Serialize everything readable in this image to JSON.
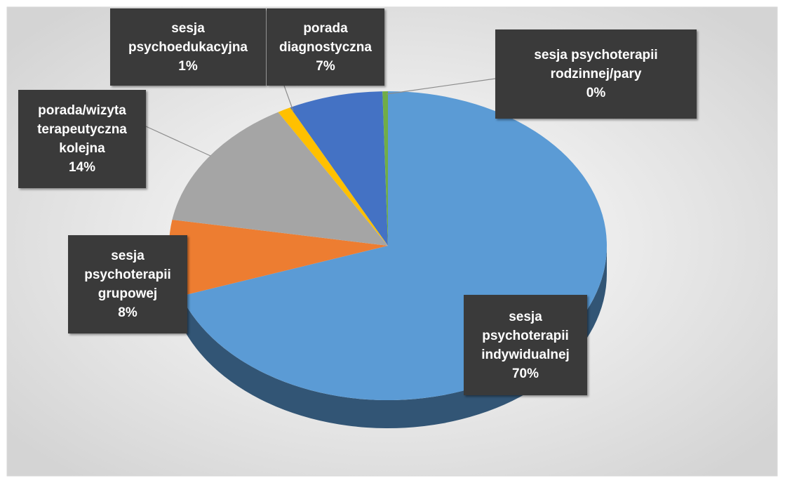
{
  "chart_data": {
    "type": "pie",
    "categories": [
      "sesja psychoterapii indywidualnej",
      "sesja psychoterapii grupowej",
      "porada/wizyta terapeutyczna kolejna",
      "sesja psychoedukacyjna",
      "porada diagnostyczna",
      "sesja psychoterapii rodzinnej/pary"
    ],
    "values": [
      70,
      8,
      14,
      1,
      7,
      0.4
    ],
    "value_labels": [
      "70%",
      "8%",
      "14%",
      "1%",
      "7%",
      "0%"
    ],
    "colors": [
      "#5b9bd5",
      "#ed7d31",
      "#a5a5a5",
      "#ffc000",
      "#4472c4",
      "#70ad47"
    ]
  }
}
